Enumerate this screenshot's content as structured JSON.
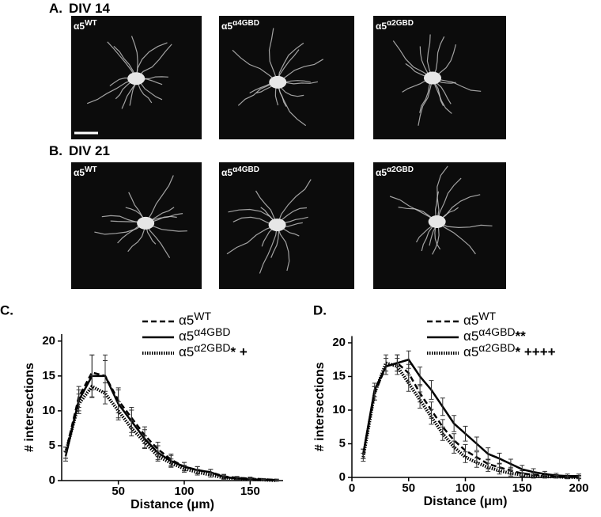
{
  "panels": [
    {
      "label": "A.",
      "title": "DIV 14",
      "images": [
        {
          "base": "α5",
          "sup": "WT"
        },
        {
          "base": "α5",
          "sup": "α4GBD"
        },
        {
          "base": "α5",
          "sup": "α2GBD"
        }
      ]
    },
    {
      "label": "B.",
      "title": "DIV 21",
      "images": [
        {
          "base": "α5",
          "sup": "WT"
        },
        {
          "base": "α5",
          "sup": "α4GBD"
        },
        {
          "base": "α5",
          "sup": "α2GBD"
        }
      ]
    }
  ],
  "chart_data": [
    {
      "type": "line",
      "panel": "C.",
      "xlabel": "Distance (μm)",
      "ylabel": "# intersections",
      "x": [
        10,
        20,
        30,
        40,
        50,
        60,
        70,
        80,
        90,
        100,
        110,
        120,
        130,
        140,
        150,
        160,
        170
      ],
      "xlim": [
        7,
        175
      ],
      "xticks": [
        50,
        100,
        150
      ],
      "ylim": [
        0,
        21
      ],
      "yticks": [
        0,
        5,
        10,
        15,
        20
      ],
      "series": [
        {
          "name": "α5",
          "name_sup": "WT",
          "style": "dashed",
          "color": "#000",
          "values": [
            4,
            12,
            15.5,
            15,
            11.5,
            9,
            6.5,
            4.5,
            3,
            2,
            1.5,
            1.2,
            0.6,
            0.4,
            0.3,
            0.2,
            0.1
          ],
          "errors": [
            0.8,
            1.5,
            2.5,
            2.2,
            1.8,
            1.5,
            1.2,
            1,
            0.8,
            0.6,
            0.5,
            0.4,
            0.3,
            0.2,
            0.2,
            0.1,
            0.1
          ]
        },
        {
          "name": "α5",
          "name_sup": "α4GBD",
          "style": "solid",
          "color": "#000",
          "values": [
            3.5,
            11.5,
            15,
            15,
            11,
            8.5,
            6,
            4,
            2.8,
            2,
            1.5,
            1.2,
            0.5,
            0.3,
            0.2,
            0.1,
            0.1
          ],
          "errors": [
            0.7,
            1.5,
            3,
            3,
            2,
            1.6,
            1.3,
            1,
            0.8,
            0.6,
            0.5,
            0.4,
            0.3,
            0.2,
            0.2,
            0.1,
            0.1
          ]
        },
        {
          "name": "α5",
          "name_sup": "α2GBD",
          "annotation": "* +",
          "style": "dotted",
          "color": "#000",
          "values": [
            4,
            11,
            13.5,
            12.5,
            10,
            7.5,
            5.5,
            3.5,
            2.5,
            1.7,
            1.2,
            0.8,
            0.4,
            0.3,
            0.2,
            0.1,
            0
          ],
          "errors": [
            0.8,
            1.4,
            1.6,
            1.5,
            1.3,
            1.1,
            0.9,
            0.7,
            0.6,
            0.5,
            0.4,
            0.3,
            0.2,
            0.2,
            0.1,
            0.1,
            0.1
          ]
        }
      ]
    },
    {
      "type": "line",
      "panel": "D.",
      "xlabel": "Distance (μm)",
      "ylabel": "# intersections",
      "x": [
        10,
        20,
        30,
        40,
        50,
        60,
        70,
        80,
        90,
        100,
        110,
        120,
        130,
        140,
        150,
        160,
        170,
        180,
        190,
        200
      ],
      "xlim": [
        0,
        200
      ],
      "xticks": [
        0,
        50,
        100,
        150,
        200
      ],
      "ylim": [
        0,
        21
      ],
      "yticks": [
        0,
        5,
        10,
        15,
        20
      ],
      "series": [
        {
          "name": "α5",
          "name_sup": "WT",
          "style": "dashed",
          "color": "#000",
          "values": [
            3.5,
            12.5,
            16.5,
            17,
            15.5,
            12.5,
            10,
            7.5,
            5.5,
            4,
            3,
            2,
            1.5,
            1,
            0.6,
            0.4,
            0.3,
            0.2,
            0.1,
            0.1
          ],
          "errors": [
            0.7,
            1,
            1.2,
            1.2,
            1.3,
            1.3,
            1.2,
            1.1,
            1,
            0.9,
            0.8,
            0.7,
            0.6,
            0.5,
            0.4,
            0.3,
            0.3,
            0.2,
            0.2,
            0.2
          ]
        },
        {
          "name": "α5",
          "name_sup": "α4GBD",
          "annotation": "**",
          "style": "solid",
          "color": "#000",
          "values": [
            3.5,
            13,
            16.5,
            17,
            17.5,
            15,
            13,
            10.5,
            8,
            6.5,
            5,
            3.5,
            2.8,
            2,
            1.2,
            0.8,
            0.5,
            0.3,
            0.2,
            0.2
          ],
          "errors": [
            0.7,
            1,
            1.2,
            1.2,
            1.3,
            1.4,
            1.4,
            1.3,
            1.2,
            1.1,
            1,
            0.9,
            0.8,
            0.7,
            0.6,
            0.5,
            0.4,
            0.3,
            0.3,
            0.3
          ]
        },
        {
          "name": "α5",
          "name_sup": "α2GBD",
          "annotation": "* ++++",
          "style": "dotted",
          "color": "#000",
          "values": [
            3,
            12.5,
            17,
            16.5,
            14,
            11.5,
            9,
            6.5,
            4.5,
            3,
            2.2,
            1.5,
            1,
            0.6,
            0.4,
            0.2,
            0.1,
            0.1,
            0,
            0
          ],
          "errors": [
            0.6,
            1,
            1.2,
            1.2,
            1.2,
            1.2,
            1.1,
            1,
            0.9,
            0.8,
            0.7,
            0.6,
            0.5,
            0.4,
            0.3,
            0.3,
            0.2,
            0.2,
            0.2,
            0.2
          ]
        }
      ]
    }
  ]
}
